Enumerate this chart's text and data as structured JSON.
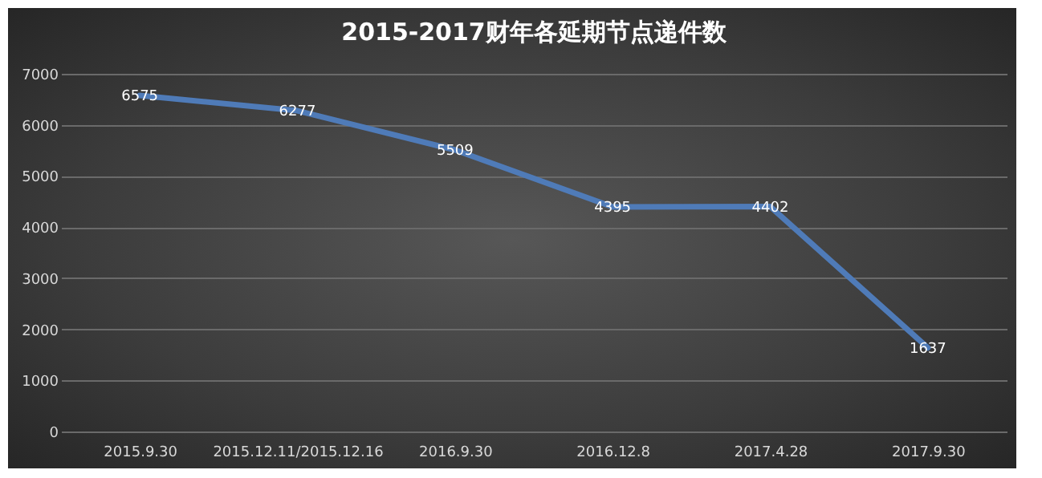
{
  "chart_data": {
    "type": "line",
    "title": "2015-2017财年各延期节点递件数",
    "categories": [
      "2015.9.30",
      "2015.12.11/2015.12.16",
      "2016.9.30",
      "2016.12.8",
      "2017.4.28",
      "2017.9.30"
    ],
    "series": [
      {
        "color": "#4f7bb8",
        "values": [
          6575,
          6277,
          5509,
          4395,
          4402,
          1637
        ]
      }
    ],
    "ylim": [
      0,
      7000
    ],
    "yticks": [
      0,
      1000,
      2000,
      3000,
      4000,
      5000,
      6000,
      7000
    ],
    "grid": "y",
    "data_labels": true
  }
}
